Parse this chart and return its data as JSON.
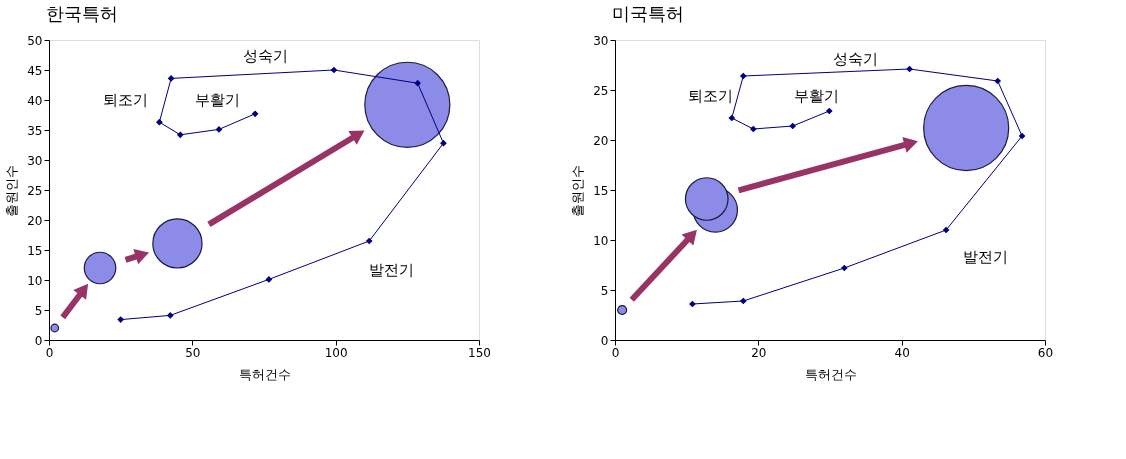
{
  "chart_data": [
    {
      "type": "line",
      "title": "한국특허",
      "xlabel": "특허건수",
      "ylabel": "출원인수",
      "xlim": [
        0,
        150
      ],
      "xticks": [
        0,
        50,
        100,
        150
      ],
      "ylim": [
        0,
        50
      ],
      "yticks": [
        0,
        5,
        10,
        15,
        20,
        25,
        30,
        35,
        40,
        45,
        50
      ],
      "grid": false,
      "series": [
        {
          "type": "bubble",
          "color": "#8c8ce8",
          "x": [
            2,
            17.8,
            44.8,
            125
          ],
          "values": [
            2,
            12,
            16.1,
            39.2
          ],
          "sizes": [
            0.008,
            0.137,
            0.334,
            1
          ]
        },
        {
          "color": "#000080",
          "marker": "diamond",
          "x": [
            25,
            42.3,
            76.7,
            111.7,
            137.6,
            128.6,
            99.4,
            42.6,
            38.5,
            45.8,
            59.3,
            71.9
          ],
          "values": [
            3.4,
            4.1,
            10.1,
            16.5,
            32.8,
            42.8,
            45,
            43.6,
            36.3,
            34.2,
            35.1,
            37.7
          ]
        }
      ],
      "annotations": [
        "성숙기",
        "퇴조기",
        "부활기",
        "발전기"
      ]
    },
    {
      "type": "line",
      "title": "미국특허",
      "xlabel": "특허건수",
      "ylabel": "출원인수",
      "xlim": [
        0,
        60
      ],
      "xticks": [
        0,
        20,
        40,
        60
      ],
      "ylim": [
        0,
        30
      ],
      "yticks": [
        0,
        5,
        10,
        15,
        20,
        25,
        30
      ],
      "grid": false,
      "series": [
        {
          "type": "bubble",
          "color": "#8c8ce8",
          "x": [
            1,
            14,
            12.8,
            49
          ],
          "values": [
            3,
            13,
            14.1,
            21.2
          ],
          "sizes": [
            0.011,
            0.27,
            0.25,
            1
          ]
        },
        {
          "color": "#000080",
          "marker": "diamond",
          "x": [
            10.8,
            17.9,
            32,
            46.2,
            56.8,
            53.4,
            41.1,
            17.9,
            16.3,
            19.3,
            24.8,
            29.9
          ],
          "values": [
            3.6,
            3.9,
            7.2,
            11,
            20.4,
            25.9,
            27.1,
            26.4,
            22.2,
            21.1,
            21.4,
            22.9
          ]
        }
      ],
      "annotations": [
        "성숙기",
        "퇴조기",
        "부활기",
        "발전기"
      ]
    }
  ]
}
